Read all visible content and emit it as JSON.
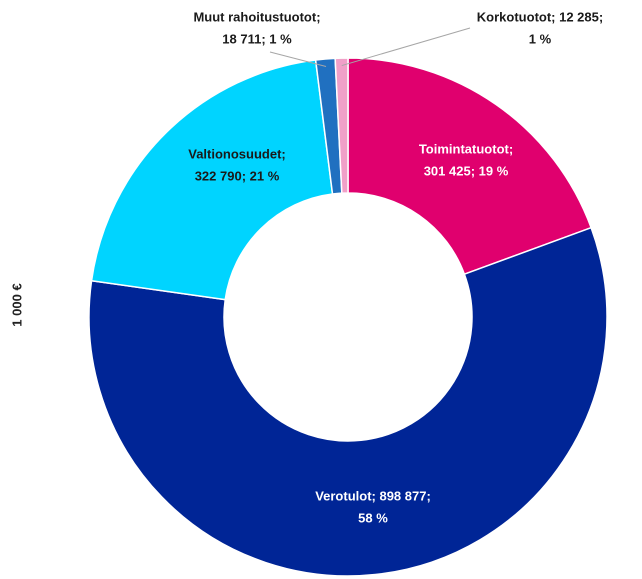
{
  "chart_data": {
    "type": "donut",
    "y_label": "1 000 €",
    "categories": [
      "Toimintatuotot",
      "Verotulot",
      "Valtionosuudet",
      "Muut rahoitustuotot",
      "Korkotuotot"
    ],
    "values": [
      301425,
      898877,
      322790,
      18711,
      12285
    ],
    "value_labels": [
      [
        "Toimintatuotot;",
        "301 425; 19 %"
      ],
      [
        "Verotulot; 898 877;",
        "58 %"
      ],
      [
        "Valtionosuudet;",
        "322 790; 21 %"
      ],
      [
        "Muut rahoitustuotot;",
        "18 711; 1 %"
      ],
      [
        "Korkotuotot; 12 285;",
        "1 %"
      ]
    ],
    "colors": [
      "#e0006e",
      "#002596",
      "#00d4ff",
      "#2070c0",
      "#f0a0c8"
    ]
  }
}
